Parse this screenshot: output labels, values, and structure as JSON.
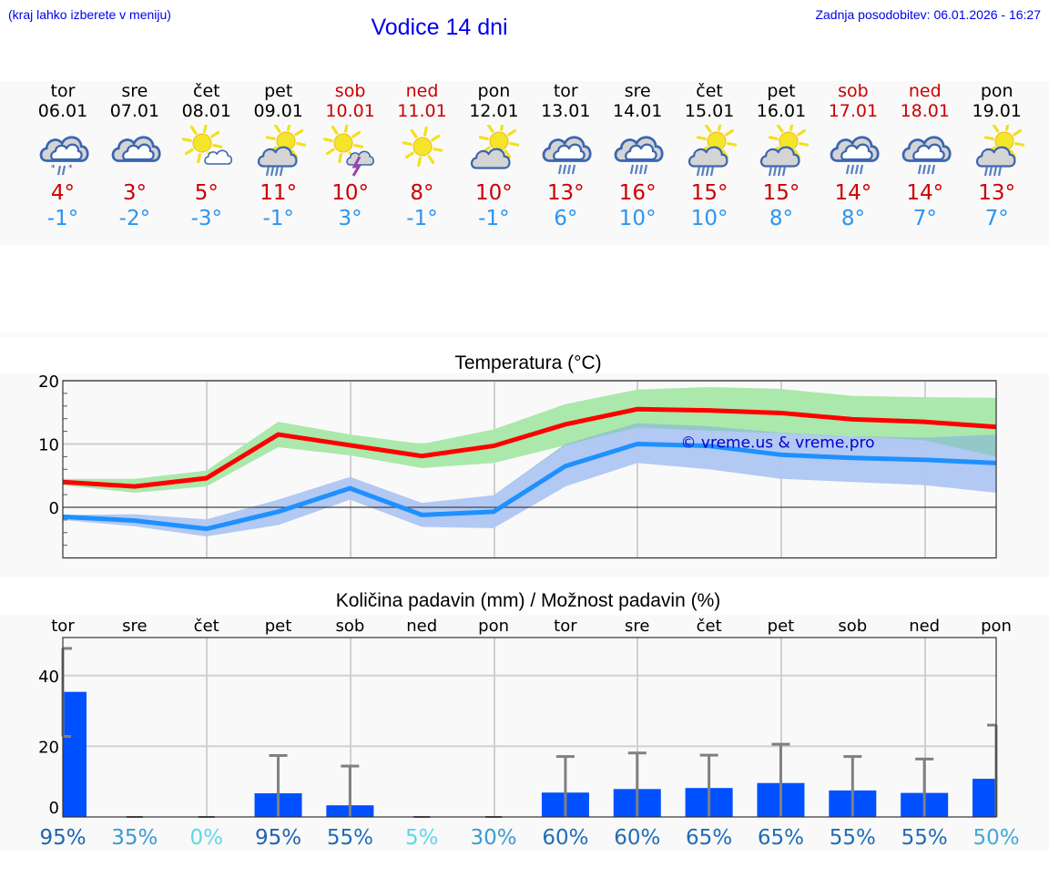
{
  "header": {
    "hint": "(kraj lahko izberete v meniju)",
    "title": "Vodice 14 dni",
    "last_update": "Zadnja posodobitev: 06.01.2026 - 16:27"
  },
  "days": [
    {
      "name": "tor",
      "date": "06.01",
      "weekend": false,
      "icon": "cloudy-rain-snow-icon",
      "tmax": "4°",
      "tmin": "-1°"
    },
    {
      "name": "sre",
      "date": "07.01",
      "weekend": false,
      "icon": "overcast-icon",
      "tmax": "3°",
      "tmin": "-2°"
    },
    {
      "name": "čet",
      "date": "08.01",
      "weekend": false,
      "icon": "sun-small-cloud-icon",
      "tmax": "5°",
      "tmin": "-3°"
    },
    {
      "name": "pet",
      "date": "09.01",
      "weekend": false,
      "icon": "sun-cloud-rain-icon",
      "tmax": "11°",
      "tmin": "-1°"
    },
    {
      "name": "sob",
      "date": "10.01",
      "weekend": true,
      "icon": "sun-thunderstorm-icon",
      "tmax": "10°",
      "tmin": "3°"
    },
    {
      "name": "ned",
      "date": "11.01",
      "weekend": true,
      "icon": "sun-icon",
      "tmax": "8°",
      "tmin": "-1°"
    },
    {
      "name": "pon",
      "date": "12.01",
      "weekend": false,
      "icon": "partly-cloudy-icon",
      "tmax": "10°",
      "tmin": "-1°"
    },
    {
      "name": "tor",
      "date": "13.01",
      "weekend": false,
      "icon": "overcast-rain-icon",
      "tmax": "13°",
      "tmin": "6°"
    },
    {
      "name": "sre",
      "date": "14.01",
      "weekend": false,
      "icon": "overcast-rain-icon",
      "tmax": "16°",
      "tmin": "10°"
    },
    {
      "name": "čet",
      "date": "15.01",
      "weekend": false,
      "icon": "sun-cloud-rain-icon",
      "tmax": "15°",
      "tmin": "10°"
    },
    {
      "name": "pet",
      "date": "16.01",
      "weekend": false,
      "icon": "sun-cloud-rain-icon",
      "tmax": "15°",
      "tmin": "8°"
    },
    {
      "name": "sob",
      "date": "17.01",
      "weekend": true,
      "icon": "overcast-rain-icon",
      "tmax": "14°",
      "tmin": "8°"
    },
    {
      "name": "ned",
      "date": "18.01",
      "weekend": true,
      "icon": "overcast-rain-icon",
      "tmax": "14°",
      "tmin": "7°"
    },
    {
      "name": "pon",
      "date": "19.01",
      "weekend": false,
      "icon": "sun-cloud-rain-icon",
      "tmax": "13°",
      "tmin": "7°"
    }
  ],
  "colors": {
    "max_line": "#ff0000",
    "max_band": "#abe8ab",
    "min_line": "#1e90ff",
    "min_band": "#aec6f2",
    "overlap_band": "#7ec8a8",
    "bar": "#0050ff",
    "errbar": "#808080",
    "watermark": "#0000cc"
  },
  "temp_chart": {
    "title": "Temperatura (°C)",
    "watermark": "© vreme.us & vreme.pro"
  },
  "precip_chart": {
    "title": "Količina padavin (mm) / Možnost padavin (%)"
  },
  "chart_data": [
    {
      "type": "line",
      "title": "Temperatura (°C)",
      "xlabel": "",
      "ylabel": "°C",
      "categories": [
        "06.01",
        "07.01",
        "08.01",
        "09.01",
        "10.01",
        "11.01",
        "12.01",
        "13.01",
        "14.01",
        "15.01",
        "16.01",
        "17.01",
        "18.01",
        "19.01"
      ],
      "ylim": [
        -8,
        20
      ],
      "yticks": [
        0,
        10,
        20
      ],
      "grid": true,
      "series": [
        {
          "name": "max",
          "values": [
            4.0,
            3.3,
            4.6,
            11.5,
            9.8,
            8.1,
            9.7,
            13.1,
            15.5,
            15.3,
            14.9,
            13.9,
            13.5,
            12.7
          ]
        },
        {
          "name": "min",
          "values": [
            -1.5,
            -2.1,
            -3.4,
            -0.7,
            3.0,
            -1.2,
            -0.7,
            6.5,
            10.0,
            9.7,
            8.3,
            7.8,
            7.5,
            7.0
          ]
        },
        {
          "name": "max_range_high",
          "values": [
            4.5,
            4.5,
            5.8,
            13.5,
            11.5,
            10.0,
            12.3,
            16.3,
            18.6,
            19.0,
            18.7,
            17.6,
            17.4,
            17.3
          ]
        },
        {
          "name": "max_range_low",
          "values": [
            3.5,
            2.3,
            3.3,
            9.5,
            8.2,
            6.2,
            7.0,
            9.8,
            12.6,
            12.1,
            11.7,
            11.2,
            10.6,
            8.0
          ]
        },
        {
          "name": "min_range_high",
          "values": [
            -1.2,
            -1.1,
            -1.9,
            1.2,
            4.8,
            0.7,
            1.9,
            10.0,
            13.3,
            12.8,
            11.8,
            11.2,
            11.0,
            11.5
          ]
        },
        {
          "name": "min_range_low",
          "values": [
            -2.0,
            -3.0,
            -4.6,
            -2.8,
            1.2,
            -3.1,
            -3.3,
            3.3,
            7.0,
            6.0,
            4.5,
            4.0,
            3.5,
            2.3
          ]
        }
      ],
      "annotations": [
        "© vreme.us & vreme.pro"
      ]
    },
    {
      "type": "bar",
      "title": "Količina padavin (mm) / Možnost padavin (%)",
      "xlabel": "",
      "ylabel": "mm",
      "categories": [
        "tor",
        "sre",
        "čet",
        "pet",
        "sob",
        "ned",
        "pon",
        "tor",
        "sre",
        "čet",
        "pet",
        "sob",
        "ned",
        "pon"
      ],
      "ylim": [
        0,
        50
      ],
      "yticks": [
        0,
        20,
        40
      ],
      "grid": true,
      "series": [
        {
          "name": "precipitation_mm",
          "values": [
            35.4,
            0,
            0,
            6.7,
            3.3,
            0,
            0,
            6.9,
            7.9,
            8.2,
            9.6,
            7.5,
            6.8,
            10.8
          ]
        },
        {
          "name": "precipitation_upper_mm",
          "values": [
            47.7,
            0,
            0,
            17.4,
            14.4,
            0,
            0,
            17.1,
            18.1,
            17.5,
            20.6,
            17.1,
            16.4,
            26.0
          ]
        },
        {
          "name": "precipitation_lower_mm",
          "values": [
            22.8,
            0,
            0,
            0,
            0,
            0,
            0,
            0,
            0,
            0,
            0,
            0,
            0,
            0
          ]
        }
      ],
      "probability_pct": [
        "95%",
        "35%",
        "0%",
        "95%",
        "55%",
        "5%",
        "30%",
        "60%",
        "60%",
        "65%",
        "65%",
        "55%",
        "55%",
        "50%"
      ],
      "probability_colors": [
        "#1f62b0",
        "#3d99d2",
        "#5fd6e8",
        "#1f62b0",
        "#1f6cb7",
        "#5fd6e8",
        "#3d99d2",
        "#1f6cb7",
        "#1f6cb7",
        "#1f6cb7",
        "#1f6cb7",
        "#1f6cb7",
        "#1f6cb7",
        "#43a8d8"
      ]
    }
  ]
}
